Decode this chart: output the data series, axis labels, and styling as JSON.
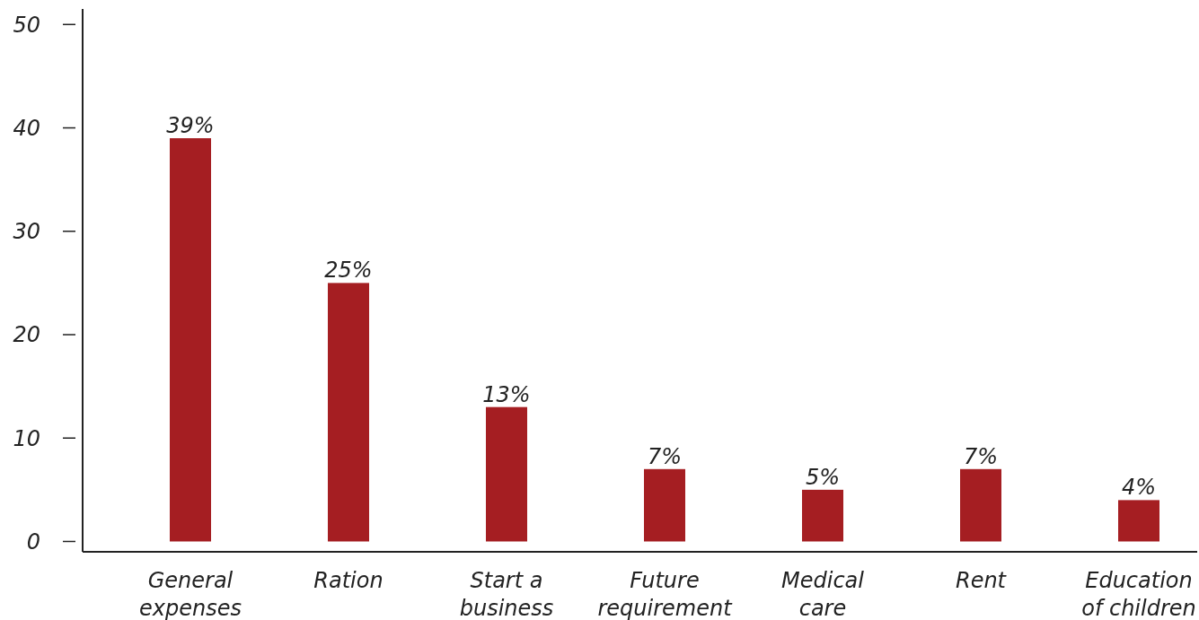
{
  "chart_data": {
    "type": "bar",
    "categories": [
      "General expenses",
      "Ration",
      "Start a business",
      "Future requirement",
      "Medical care",
      "Rent",
      "Education of children"
    ],
    "values": [
      39,
      25,
      13,
      7,
      5,
      7,
      4
    ],
    "value_labels": [
      "39%",
      "25%",
      "13%",
      "7%",
      "5%",
      "7%",
      "4%"
    ],
    "color": "#a51e22",
    "ylim": [
      -1,
      51.5
    ],
    "yticks": [
      0,
      10,
      20,
      30,
      40,
      50
    ],
    "grid": false
  }
}
